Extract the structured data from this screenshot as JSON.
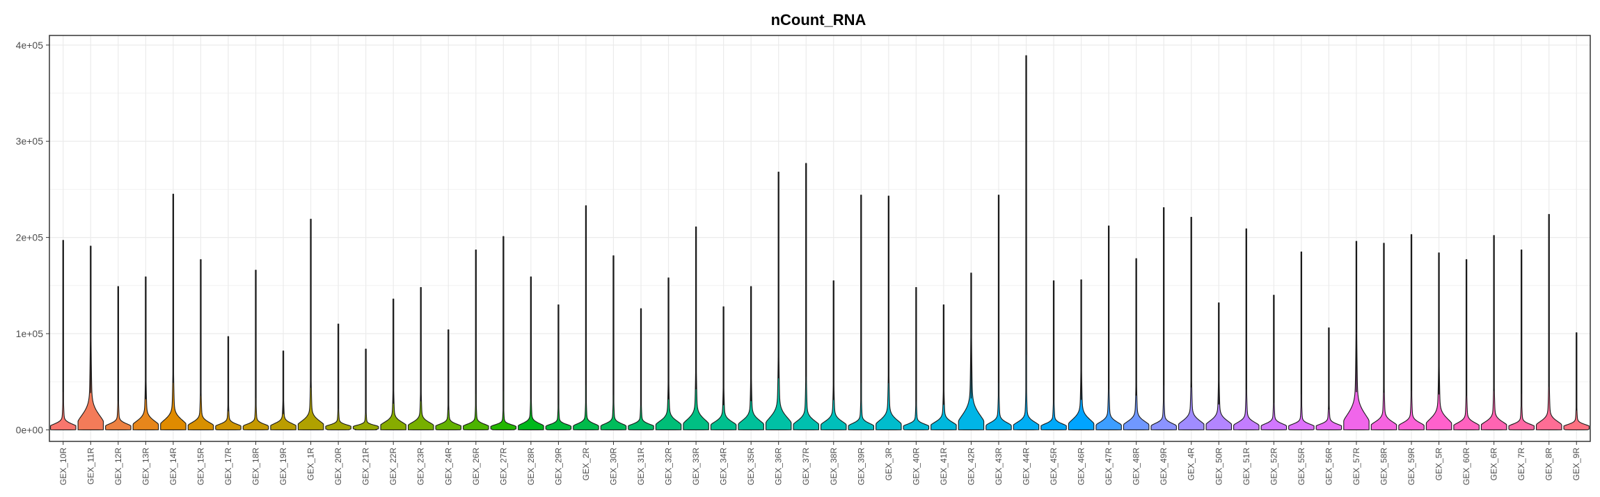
{
  "chart_data": {
    "type": "violin",
    "title": "nCount_RNA",
    "xlabel": "",
    "ylabel": "",
    "ylim": [
      -12000,
      410000
    ],
    "y_ticks": [
      0,
      100000,
      200000,
      300000,
      400000
    ],
    "y_tick_labels": [
      "0e+00",
      "1e+05",
      "2e+05",
      "3e+05",
      "4e+05"
    ],
    "grid": true,
    "legend": "none",
    "categories": [
      "GEX_10R",
      "GEX_11R",
      "GEX_12R",
      "GEX_13R",
      "GEX_14R",
      "GEX_15R",
      "GEX_17R",
      "GEX_18R",
      "GEX_19R",
      "GEX_1R",
      "GEX_20R",
      "GEX_21R",
      "GEX_22R",
      "GEX_23R",
      "GEX_24R",
      "GEX_26R",
      "GEX_27R",
      "GEX_28R",
      "GEX_29R",
      "GEX_2R",
      "GEX_30R",
      "GEX_31R",
      "GEX_32R",
      "GEX_33R",
      "GEX_34R",
      "GEX_35R",
      "GEX_36R",
      "GEX_37R",
      "GEX_38R",
      "GEX_39R",
      "GEX_3R",
      "GEX_40R",
      "GEX_41R",
      "GEX_42R",
      "GEX_43R",
      "GEX_44R",
      "GEX_45R",
      "GEX_46R",
      "GEX_47R",
      "GEX_48R",
      "GEX_49R",
      "GEX_4R",
      "GEX_50R",
      "GEX_51R",
      "GEX_52R",
      "GEX_55R",
      "GEX_56R",
      "GEX_57R",
      "GEX_58R",
      "GEX_59R",
      "GEX_5R",
      "GEX_60R",
      "GEX_6R",
      "GEX_7R",
      "GEX_8R",
      "GEX_9R"
    ],
    "max_values": [
      197000,
      191000,
      149000,
      159000,
      245000,
      177000,
      97000,
      166000,
      82000,
      219000,
      110000,
      84000,
      136000,
      148000,
      104000,
      187000,
      201000,
      159000,
      130000,
      233000,
      181000,
      126000,
      158000,
      211000,
      128000,
      149000,
      268000,
      277000,
      155000,
      244000,
      243000,
      148000,
      130000,
      163000,
      244000,
      389000,
      155000,
      156000,
      212000,
      178000,
      231000,
      221000,
      132000,
      209000,
      140000,
      185000,
      106000,
      196000,
      194000,
      203000,
      184000,
      177000,
      202000,
      187000,
      224000,
      101000
    ],
    "bulk_values": [
      11000,
      37000,
      11000,
      20000,
      23000,
      15000,
      10000,
      10000,
      12000,
      20000,
      8000,
      7000,
      16000,
      15000,
      10000,
      10000,
      8000,
      12000,
      9000,
      11000,
      11000,
      10000,
      19000,
      24000,
      17000,
      21000,
      30000,
      20000,
      18000,
      12000,
      22000,
      10000,
      16000,
      38000,
      14000,
      16000,
      11000,
      24000,
      16000,
      18000,
      12000,
      20000,
      20000,
      15000,
      11000,
      10000,
      10000,
      40000,
      17000,
      14000,
      26000,
      14000,
      17000,
      10000,
      18000,
      9000
    ],
    "colors": [
      "#F8766D",
      "#F37B59",
      "#ED8141",
      "#E7861B",
      "#E08B00",
      "#D89000",
      "#CF9400",
      "#C59900",
      "#BB9D00",
      "#B0A100",
      "#A3A500",
      "#96A900",
      "#87AC00",
      "#77AF00",
      "#64B200",
      "#4CB400",
      "#24B700",
      "#00B81B",
      "#00BA38",
      "#00BB4B",
      "#00BC5B",
      "#00BD69",
      "#00BE77",
      "#00BF83",
      "#00C08F",
      "#00C09A",
      "#00C1A5",
      "#00C0AF",
      "#00BFBA",
      "#00BEC3",
      "#00BCCD",
      "#00BAD5",
      "#00B8DE",
      "#00B5E6",
      "#00B2ED",
      "#00AEF4",
      "#00A9FA",
      "#00A4FF",
      "#3D9EFF",
      "#7098FF",
      "#8B93FF",
      "#A08CFF",
      "#B385FF",
      "#C37DFF",
      "#D177FE",
      "#DD71FA",
      "#E76BF3",
      "#F066EA",
      "#F664E0",
      "#FB61D7",
      "#FF61CC",
      "#FF62BF",
      "#FF64B2",
      "#FF68A4",
      "#FE6D95",
      "#FC7181"
    ]
  }
}
